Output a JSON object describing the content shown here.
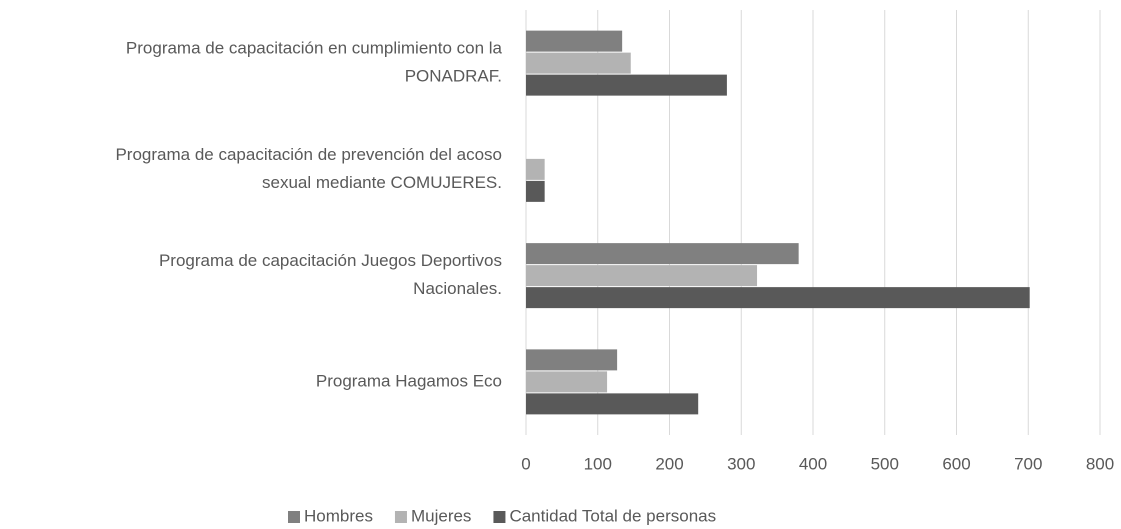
{
  "chart_data": {
    "type": "bar",
    "orientation": "horizontal",
    "categories": [
      [
        "Programa de capacitación en cumplimiento con la",
        "PONADRAF."
      ],
      [
        "Programa de capacitación de prevención del acoso",
        "sexual mediante COMUJERES."
      ],
      [
        "Programa de capacitación Juegos Deportivos",
        "Nacionales."
      ],
      [
        "Programa Hagamos  Eco"
      ]
    ],
    "series": [
      {
        "name": "Hombres",
        "color": "#808080",
        "values": [
          134,
          null,
          380,
          127
        ]
      },
      {
        "name": "Mujeres",
        "color": "#b3b3b3",
        "values": [
          146,
          26,
          322,
          113
        ]
      },
      {
        "name": "Cantidad Total de personas",
        "color": "#595959",
        "values": [
          280,
          26,
          702,
          240
        ]
      }
    ],
    "xlim": [
      0,
      800
    ],
    "xticks": [
      0,
      100,
      200,
      300,
      400,
      500,
      600,
      700,
      800
    ],
    "grid": true,
    "legend": "bottom"
  }
}
